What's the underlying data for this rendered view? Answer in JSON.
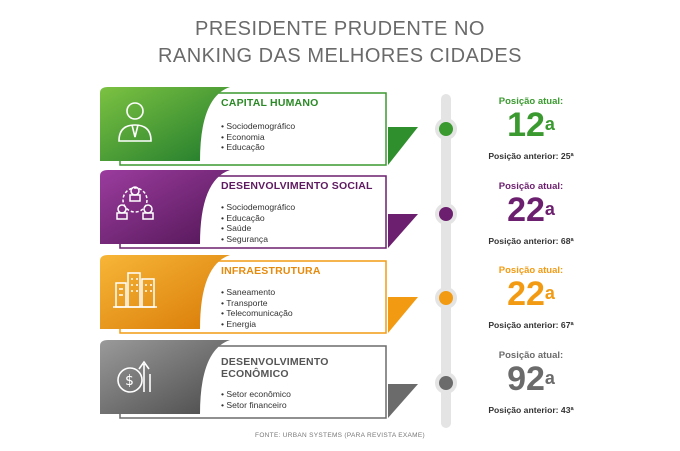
{
  "title_line1": "PRESIDENTE PRUDENTE NO",
  "title_line2": "RANKING DAS MELHORES CIDADES",
  "categories": [
    {
      "name": "CAPITAL HUMANO",
      "items": [
        "Sociodemográfico",
        "Economia",
        "Educação"
      ],
      "rank_label": "Posição atual:",
      "rank": "12",
      "ordinal": "a",
      "previous": "Posição anterior: 25ª",
      "color": "#3a9a2f",
      "icon": "person-icon"
    },
    {
      "name": "DESENVOLVIMENTO SOCIAL",
      "items": [
        "Sociodemográfico",
        "Educação",
        "Saúde",
        "Segurança"
      ],
      "rank_label": "Posição atual:",
      "rank": "22",
      "ordinal": "a",
      "previous": "Posição anterior: 68ª",
      "color": "#6c1f6e",
      "icon": "people-network-icon"
    },
    {
      "name": "INFRAESTRUTURA",
      "items": [
        "Saneamento",
        "Transporte",
        "Telecomunicação",
        "Energia"
      ],
      "rank_label": "Posição atual:",
      "rank": "22",
      "ordinal": "a",
      "previous": "Posição anterior: 67ª",
      "color": "#f29b12",
      "icon": "city-buildings-icon"
    },
    {
      "name": "DESENVOLVIMENTO ECONÔMICO",
      "items": [
        "Setor econômico",
        "Setor financeiro"
      ],
      "rank_label": "Posição atual:",
      "rank": "92",
      "ordinal": "a",
      "previous": "Posição anterior: 43ª",
      "color": "#6b6b6b",
      "icon": "money-growth-icon"
    }
  ],
  "source": "FONTE: URBAN SYSTEMS (PARA REVISTA EXAME)"
}
